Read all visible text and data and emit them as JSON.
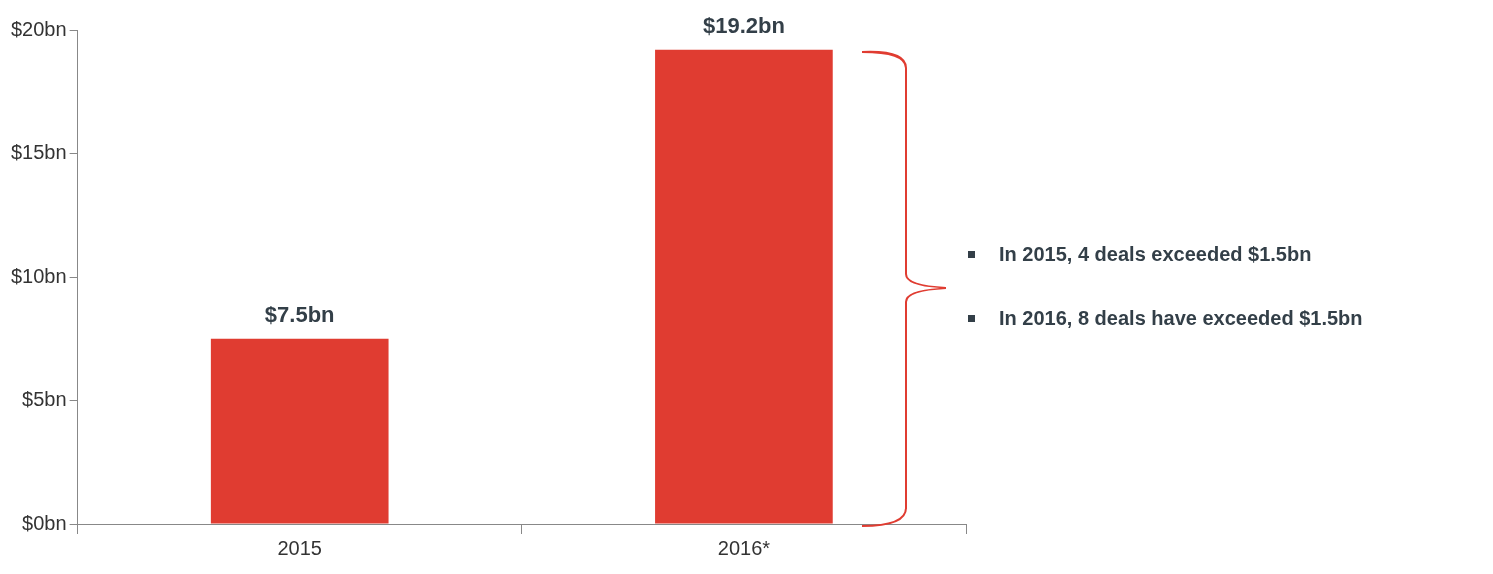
{
  "chart_data": {
    "type": "bar",
    "categories": [
      "2015",
      "2016*"
    ],
    "values": [
      7.5,
      19.2
    ],
    "color": "#e03c31",
    "value_labels": [
      "$7.5bn",
      "$19.2bn"
    ],
    "ylim": [
      0,
      20
    ],
    "yticks": [
      {
        "value": 0,
        "label": "$0bn"
      },
      {
        "value": 5,
        "label": "$5bn"
      },
      {
        "value": 10,
        "label": "$10bn"
      },
      {
        "value": 15,
        "label": "$15bn"
      },
      {
        "value": 20,
        "label": "$20bn"
      }
    ],
    "grid": false,
    "legend": false,
    "annotations": [
      "In 2015, 4 deals exceeded $1.5bn",
      "In 2016, 8 deals have exceeded $1.5bn"
    ]
  }
}
